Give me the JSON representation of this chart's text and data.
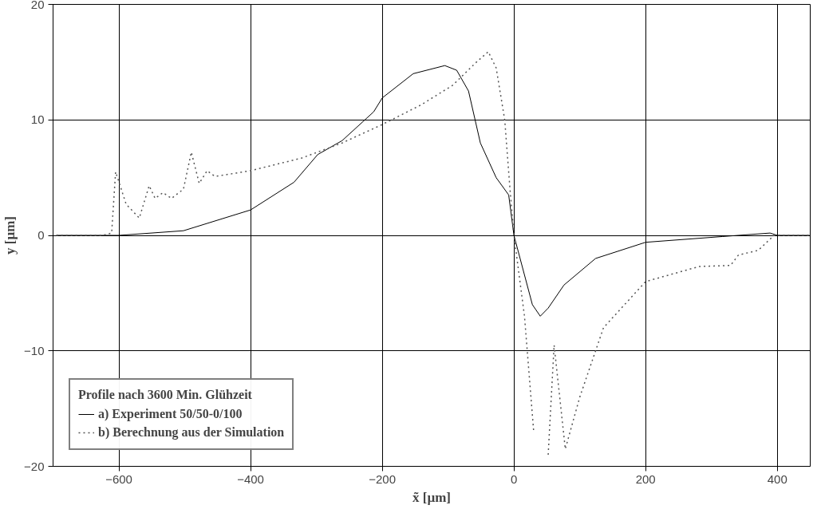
{
  "chart_data": {
    "type": "line",
    "xlabel": "x̃ [µm]",
    "ylabel": "y [µm]",
    "legend_title": "Profile nach 3600 Min. Glühzeit",
    "xlim": [
      -700,
      450
    ],
    "ylim": [
      -20,
      20
    ],
    "xticks": [
      -600,
      -400,
      -200,
      0,
      200,
      400
    ],
    "yticks": [
      -20,
      -10,
      0,
      10,
      20
    ],
    "grid": true,
    "legend": "bottom left",
    "series": [
      {
        "name": "a) Experiment 50/50-0/100",
        "color": "#000000",
        "line_style": "solid",
        "x": [
          -695,
          -600,
          -502,
          -400,
          -334,
          -298,
          -261,
          -213,
          -200,
          -153,
          -105,
          -87,
          -69,
          -51,
          -27,
          -8,
          0,
          28,
          40,
          52,
          76,
          124,
          200,
          317,
          389,
          400,
          449
        ],
        "values": [
          0,
          0,
          0.4,
          2.2,
          4.6,
          7,
          8.2,
          10.7,
          11.9,
          14,
          14.7,
          14.3,
          12.5,
          8,
          5,
          3.5,
          0,
          -6,
          -7,
          -6.3,
          -4.3,
          -2,
          -0.6,
          -0.1,
          0.2,
          0,
          0
        ]
      },
      {
        "name": "b) Berechnung aus der Simulation",
        "color": "#555555",
        "line_style": "dotted",
        "x": [
          -695,
          -625,
          -611,
          -605,
          -589,
          -569,
          -554,
          -545,
          -533,
          -520,
          -502,
          -490,
          -478,
          -466,
          -454,
          -400,
          -322,
          -261,
          -200,
          -141,
          -93,
          -57,
          -39,
          -27,
          -14,
          -6,
          0,
          16,
          30,
          31,
          52,
          61,
          78,
          100,
          136,
          200,
          281,
          329,
          341,
          371,
          395,
          449
        ],
        "values": [
          0,
          0,
          0.2,
          5.5,
          2.7,
          1.5,
          4.3,
          3.2,
          3.7,
          3.2,
          4,
          7.2,
          4.5,
          5.6,
          5.1,
          5.6,
          6.7,
          8,
          9.6,
          11.3,
          13,
          15,
          15.9,
          14.5,
          10,
          4,
          0,
          -7,
          -17,
          null,
          -19,
          -9.5,
          -18.5,
          -14,
          -8,
          -4,
          -2.7,
          -2.6,
          -1.7,
          -1.3,
          0,
          0
        ]
      }
    ]
  }
}
